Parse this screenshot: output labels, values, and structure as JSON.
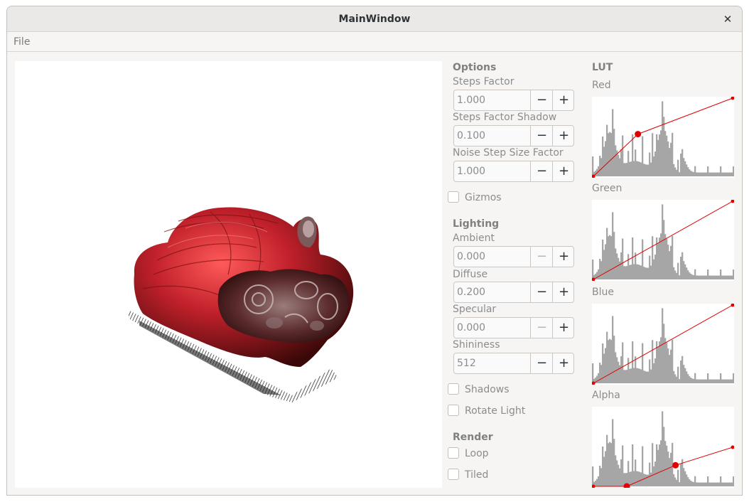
{
  "window": {
    "title": "MainWindow",
    "close_glyph": "✕"
  },
  "menu": {
    "file": "File"
  },
  "options": {
    "heading": "Options",
    "steps_factor": {
      "label": "Steps Factor",
      "value": "1.000"
    },
    "steps_factor_shadow": {
      "label": "Steps Factor Shadow",
      "value": "0.100"
    },
    "noise_step_size_factor": {
      "label": "Noise Step Size Factor",
      "value": "1.000"
    },
    "gizmos": {
      "label": "Gizmos",
      "checked": false
    }
  },
  "lighting": {
    "heading": "Lighting",
    "ambient": {
      "label": "Ambient",
      "value": "0.000"
    },
    "diffuse": {
      "label": "Diffuse",
      "value": "0.200"
    },
    "specular": {
      "label": "Specular",
      "value": "0.000"
    },
    "shininess": {
      "label": "Shininess",
      "value": "512"
    },
    "shadows": {
      "label": "Shadows",
      "checked": false
    },
    "rotate_light": {
      "label": "Rotate Light",
      "checked": false
    }
  },
  "render": {
    "heading": "Render",
    "loop": {
      "label": "Loop",
      "checked": false
    },
    "tiled": {
      "label": "Tiled",
      "checked": false
    }
  },
  "spin_glyphs": {
    "minus": "−",
    "plus": "+"
  },
  "lut": {
    "heading": "LUT",
    "channels": [
      {
        "label": "Red",
        "points": [
          [
            0.0,
            0.0
          ],
          [
            0.32,
            0.54
          ],
          [
            1.0,
            1.0
          ]
        ]
      },
      {
        "label": "Green",
        "points": [
          [
            0.0,
            0.0
          ],
          [
            1.0,
            1.0
          ]
        ]
      },
      {
        "label": "Blue",
        "points": [
          [
            0.0,
            0.0
          ],
          [
            1.0,
            1.0
          ]
        ]
      },
      {
        "label": "Alpha",
        "points": [
          [
            0.0,
            0.0
          ],
          [
            0.24,
            0.0
          ],
          [
            0.59,
            0.27
          ],
          [
            1.0,
            0.5
          ]
        ]
      }
    ],
    "curve_color": "#e00000",
    "histogram_color": "#a6a6a6"
  }
}
